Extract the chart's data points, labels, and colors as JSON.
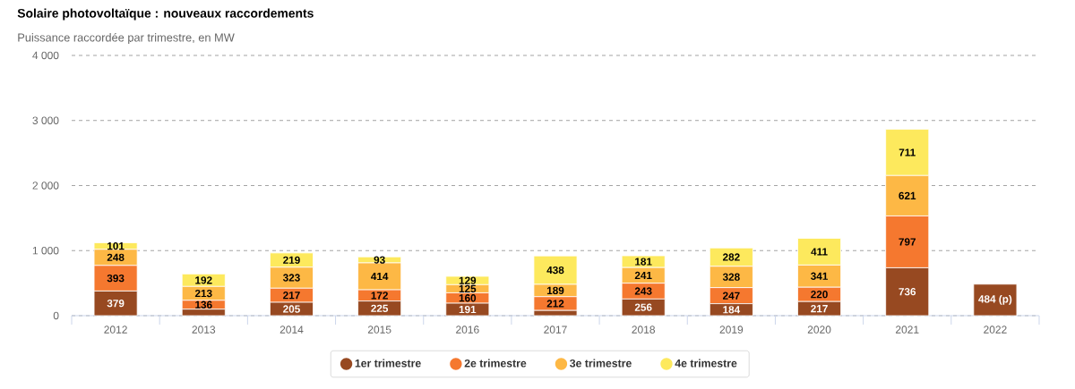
{
  "chart_data": {
    "type": "bar",
    "stacked": true,
    "title": "Solaire photovoltaïque : nouveaux raccordements",
    "subtitle": "Puissance raccordée par trimestre, en MW",
    "categories": [
      "2012",
      "2013",
      "2014",
      "2015",
      "2016",
      "2017",
      "2018",
      "2019",
      "2020",
      "2021",
      "2022"
    ],
    "series": [
      {
        "name": "1er trimestre",
        "color": "#974921",
        "values": [
          379,
          100,
          205,
          225,
          191,
          80,
          256,
          184,
          217,
          736,
          484
        ],
        "value_labels": [
          "379",
          null,
          "205",
          "225",
          "191",
          null,
          "256",
          "184",
          "217",
          "736",
          "484 (p)"
        ]
      },
      {
        "name": "2e trimestre",
        "color": "#f5782f",
        "values": [
          393,
          136,
          217,
          172,
          160,
          212,
          243,
          247,
          220,
          797,
          null
        ],
        "value_labels": [
          "393",
          "136",
          "217",
          "172",
          "160",
          "212",
          "243",
          "247",
          "220",
          "797",
          null
        ]
      },
      {
        "name": "3e trimestre",
        "color": "#fdb845",
        "values": [
          248,
          213,
          323,
          414,
          125,
          189,
          241,
          328,
          341,
          621,
          null
        ],
        "value_labels": [
          "248",
          "213",
          "323",
          "414",
          "125",
          "189",
          "241",
          "328",
          "341",
          "621",
          null
        ]
      },
      {
        "name": "4e trimestre",
        "color": "#fde95d",
        "values": [
          101,
          192,
          219,
          93,
          129,
          438,
          181,
          282,
          411,
          711,
          null
        ],
        "value_labels": [
          "101",
          "192",
          "219",
          "93",
          "129",
          "438",
          "181",
          "282",
          "411",
          "711",
          null
        ]
      }
    ],
    "ylim": [
      0,
      4000
    ],
    "yticks": [
      0,
      {
        "value": 1000,
        "label": "1 000"
      },
      {
        "value": 2000,
        "label": "2 000"
      },
      {
        "value": 3000,
        "label": "3 000"
      },
      {
        "value": 4000,
        "label": "4 000"
      }
    ],
    "grid": "y",
    "legend": "bottom"
  }
}
